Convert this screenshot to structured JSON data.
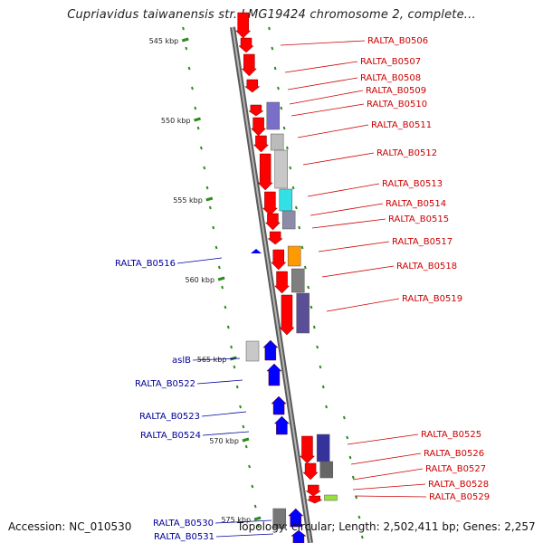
{
  "title": "Cupriavidus taiwanensis str. LMG19424 chromosome 2, complete...",
  "footer": {
    "accession": "Accession: NC_010530",
    "summary": "Topology: circular; Length: 2,502,411 bp; Genes: 2,257"
  },
  "scale_ticks": [
    {
      "label": "545 kbp"
    },
    {
      "label": "550 kbp"
    },
    {
      "label": "555 kbp"
    },
    {
      "label": "560 kbp"
    },
    {
      "label": "565 kbp"
    },
    {
      "label": "570 kbp"
    },
    {
      "label": "575 kbp"
    }
  ],
  "genes_right": [
    "RALTA_B0506",
    "RALTA_B0507",
    "RALTA_B0508",
    "RALTA_B0509",
    "RALTA_B0510",
    "RALTA_B0511",
    "RALTA_B0512",
    "RALTA_B0513",
    "RALTA_B0514",
    "RALTA_B0515",
    "RALTA_B0517",
    "RALTA_B0518",
    "RALTA_B0519",
    "RALTA_B0525",
    "RALTA_B0526",
    "RALTA_B0527",
    "RALTA_B0528",
    "RALTA_B0529"
  ],
  "genes_left": [
    "RALTA_B0516",
    "aslB",
    "RALTA_B0522",
    "RALTA_B0523",
    "RALTA_B0524",
    "RALTA_B0530",
    "RALTA_B0531"
  ],
  "colors": {
    "forward_strand": "#ff0000",
    "reverse_strand": "#0000ff",
    "label_forward": "#cc0000",
    "label_reverse": "#00009a",
    "backbone": "#888888",
    "dots": "#2e8b1e"
  }
}
